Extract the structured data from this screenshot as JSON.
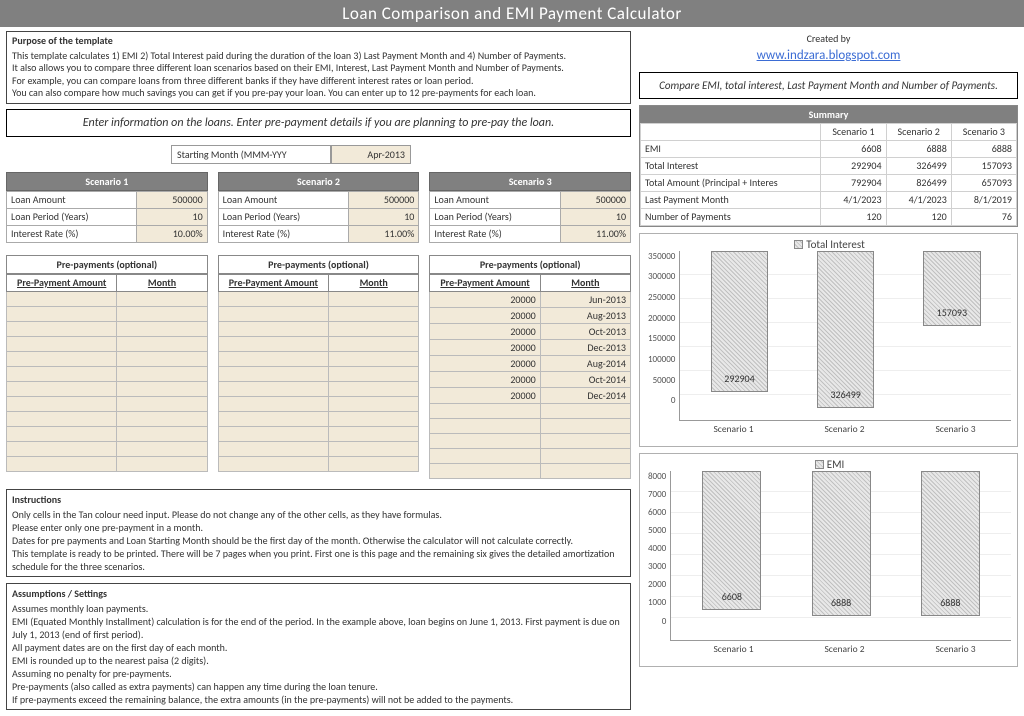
{
  "title": "Loan Comparison and EMI Payment Calculator",
  "created_by_label": "Created by",
  "created_by_link": "www.indzara.blogspot.com",
  "purpose": {
    "heading": "Purpose of the template",
    "lines": [
      "This template calculates 1) EMI 2) Total Interest paid during the duration of the loan 3) Last Payment Month and 4) Number of Payments.",
      "It also allows you to compare three different loan scenarios based on their EMI, Interest, Last Payment Month and Number of Payments.",
      "For example, you can compare loans from three different banks if they have different interest rates or loan period.",
      "You can also compare how much savings you can get if you pre-pay your loan. You can enter up to 12 pre-payments for each loan."
    ]
  },
  "enter_info": "Enter information on the loans. Enter pre-payment details if you are planning to pre-pay the loan.",
  "compare_header": "Compare EMI, total interest, Last Payment Month and Number of Payments.",
  "starting_month": {
    "label": "Starting Month (MMM-YYY",
    "value": "Apr-2013"
  },
  "scenario_labels": [
    "Loan Amount",
    "Loan Period (Years)",
    "Interest Rate (%)"
  ],
  "scenarios": [
    {
      "name": "Scenario 1",
      "amount": "500000",
      "period": "10",
      "rate": "10.00%"
    },
    {
      "name": "Scenario 2",
      "amount": "500000",
      "period": "10",
      "rate": "11.00%"
    },
    {
      "name": "Scenario 3",
      "amount": "500000",
      "period": "10",
      "rate": "11.00%"
    }
  ],
  "prepay_header": "Pre-payments (optional)",
  "prepay_cols": [
    "Pre-Payment Amount",
    "Month"
  ],
  "prepay3": [
    {
      "amt": "20000",
      "mon": "Jun-2013"
    },
    {
      "amt": "20000",
      "mon": "Aug-2013"
    },
    {
      "amt": "20000",
      "mon": "Oct-2013"
    },
    {
      "amt": "20000",
      "mon": "Dec-2013"
    },
    {
      "amt": "20000",
      "mon": "Aug-2014"
    },
    {
      "amt": "20000",
      "mon": "Oct-2014"
    },
    {
      "amt": "20000",
      "mon": "Dec-2014"
    }
  ],
  "instructions": {
    "heading": "Instructions",
    "lines": [
      "Only cells in the Tan colour need input. Please do not change any of the other cells, as they have formulas.",
      "Please enter only one pre-payment in a  month.",
      "Dates for pre payments and Loan Starting Month should be the first day of the month. Otherwise the calculator will not calculate correctly.",
      "This template is ready to be printed. There will be 7 pages when you print. First one is this page and the remaining six gives the detailed amortization schedule for the three scenarios."
    ]
  },
  "assumptions": {
    "heading": "Assumptions / Settings",
    "lines": [
      "Assumes monthly loan payments.",
      "EMI (Equated Monthly Installment) calculation is for the end of the period. In the example above, loan begins on June 1, 2013. First payment is due on July 1, 2013 (end of first period).",
      "All payment dates are on the first day of each month.",
      "EMI is rounded up to the nearest paisa (2 digits).",
      "Assuming no penalty for pre-payments.",
      "Pre-payments (also called as extra payments) can happen any time during the loan tenure.",
      "If pre-payments exceed the remaining balance, the extra amounts (in the pre-payments) will not be added to the payments."
    ]
  },
  "summary": {
    "title": "Summary",
    "cols": [
      "Scenario 1",
      "Scenario 2",
      "Scenario 3"
    ],
    "rows": [
      {
        "label": "EMI",
        "vals": [
          "6608",
          "6888",
          "6888"
        ]
      },
      {
        "label": "Total Interest",
        "vals": [
          "292904",
          "326499",
          "157093"
        ]
      },
      {
        "label": "Total Amount (Principal + Interes",
        "vals": [
          "792904",
          "826499",
          "657093"
        ]
      },
      {
        "label": "Last Payment Month",
        "vals": [
          "4/1/2023",
          "4/1/2023",
          "8/1/2019"
        ]
      },
      {
        "label": "Number of Payments",
        "vals": [
          "120",
          "120",
          "76"
        ]
      }
    ]
  },
  "chart_interest": {
    "title": "Total Interest",
    "ymax": 350000,
    "ystep": 50000,
    "bars": [
      {
        "label": "Scenario 1",
        "value": 292904,
        "text": "292904"
      },
      {
        "label": "Scenario 2",
        "value": 326499,
        "text": "326499"
      },
      {
        "label": "Scenario 3",
        "value": 157093,
        "text": "157093"
      }
    ],
    "bar_fill": "#d8d8d8",
    "bar_border": "#888888",
    "grid_color": "#eeeeee",
    "axis_color": "#999999",
    "background": "#ffffff",
    "pattern": "diagonal-hatch"
  },
  "chart_emi": {
    "title": "EMI",
    "ymax": 8000,
    "ystep": 1000,
    "bars": [
      {
        "label": "Scenario 1",
        "value": 6608,
        "text": "6608"
      },
      {
        "label": "Scenario 2",
        "value": 6888,
        "text": "6888"
      },
      {
        "label": "Scenario 3",
        "value": 6888,
        "text": "6888"
      }
    ],
    "bar_fill": "#d8d8d8",
    "bar_border": "#888888",
    "grid_color": "#eeeeee",
    "axis_color": "#999999",
    "background": "#ffffff",
    "pattern": "diagonal-hatch"
  }
}
